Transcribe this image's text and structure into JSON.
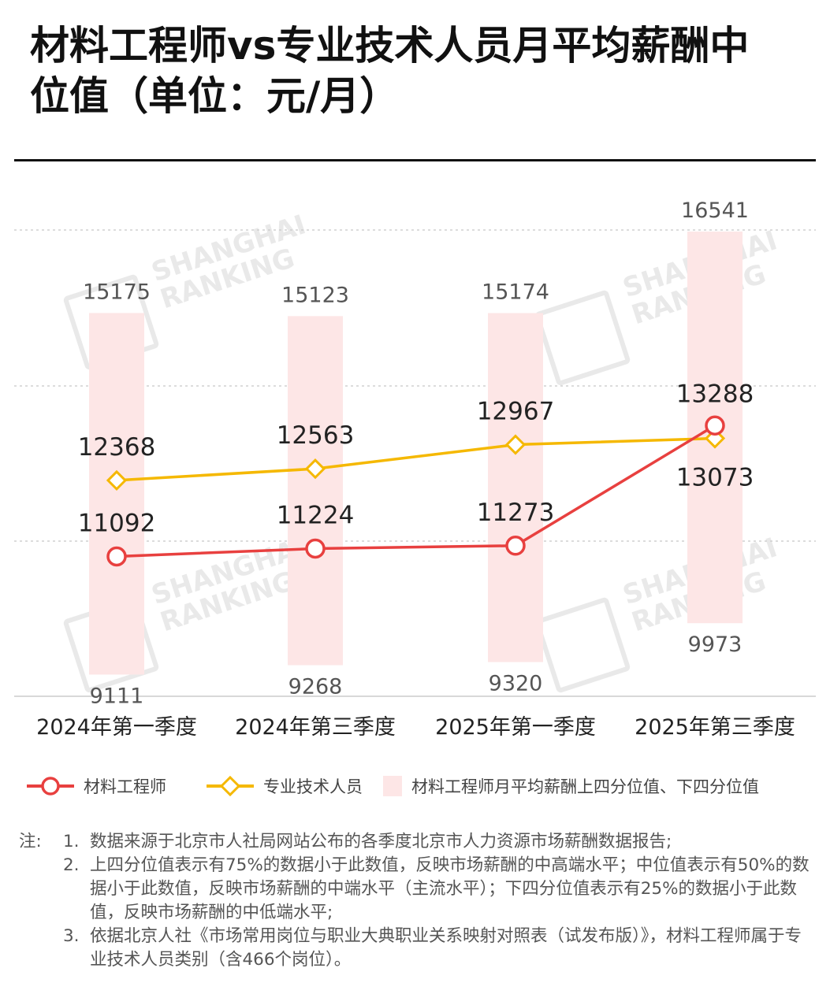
{
  "title": "材料工程师vs专业技术人员月平均薪酬中位值（单位：元/月）",
  "watermark": {
    "line1": "SHANGHAI",
    "line2": "RANKING"
  },
  "chart_data": {
    "type": "line",
    "categories": [
      "2024年第一季度",
      "2024年第三季度",
      "2025年第一季度",
      "2025年第三季度"
    ],
    "series": [
      {
        "name": "材料工程师",
        "values": [
          11092,
          11224,
          11273,
          13288
        ],
        "color": "#e8403f",
        "marker": "circle"
      },
      {
        "name": "专业技术人员",
        "values": [
          12368,
          12563,
          12967,
          13073
        ],
        "color": "#f5b800",
        "marker": "diamond"
      }
    ],
    "range_band": {
      "name": "材料工程师月平均薪酬上四分位值、下四分位值",
      "upper": [
        15175,
        15123,
        15174,
        16541
      ],
      "lower": [
        9111,
        9268,
        9320,
        9973
      ],
      "color": "#fde6e6"
    },
    "ylim": [
      6000,
      16541
    ],
    "grid": true,
    "legend_position": "bottom"
  },
  "notes": {
    "prefix": "注:",
    "items": [
      {
        "num": "1.",
        "text": "数据来源于北京市人社局网站公布的各季度北京市人力资源市场薪酬数据报告;"
      },
      {
        "num": "2.",
        "text": "上四分位值表示有75%的数据小于此数值，反映市场薪酬的中高端水平；中位值表示有50%的数据小于此数值，反映市场薪酬的中端水平（主流水平）；下四分位值表示有25%的数据小于此数值，反映市场薪酬的中低端水平;"
      },
      {
        "num": "3.",
        "text": "依据北京人社《市场常用岗位与职业大典职业关系映射对照表（试发布版）》，材料工程师属于专业技术人员类别（含466个岗位）。"
      }
    ]
  }
}
